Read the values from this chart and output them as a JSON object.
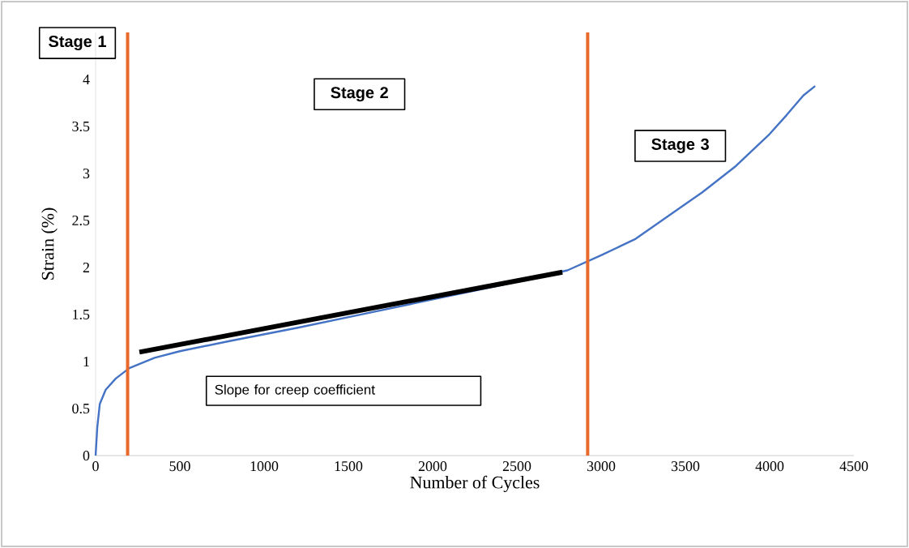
{
  "chart_data": {
    "type": "line",
    "xlabel": "Number of Cycles",
    "ylabel": "Strain (%)",
    "xlim": [
      0,
      4500
    ],
    "ylim": [
      0,
      4.5
    ],
    "xticks": [
      0,
      500,
      1000,
      1500,
      2000,
      2500,
      3000,
      3500,
      4000,
      4500
    ],
    "yticks": [
      0,
      0.5,
      1,
      1.5,
      2,
      2.5,
      3,
      3.5,
      4
    ],
    "series": [
      {
        "color": "#4472c4",
        "x": [
          0,
          10,
          25,
          60,
          120,
          200,
          350,
          500,
          800,
          1200,
          1600,
          2000,
          2400,
          2800,
          3000,
          3200,
          3400,
          3600,
          3800,
          4000,
          4100,
          4200,
          4270
        ],
        "values": [
          0,
          0.3,
          0.55,
          0.7,
          0.82,
          0.93,
          1.04,
          1.11,
          1.22,
          1.36,
          1.51,
          1.66,
          1.81,
          1.97,
          2.13,
          2.3,
          2.55,
          2.8,
          3.08,
          3.42,
          3.62,
          3.83,
          3.93
        ]
      },
      {
        "color": "#000000",
        "x": [
          260,
          2770
        ],
        "values": [
          1.1,
          1.95
        ]
      }
    ],
    "ref_lines": [
      {
        "axis": "x",
        "value": 190,
        "color": "#e9692c"
      },
      {
        "axis": "x",
        "value": 2920,
        "color": "#e9692c"
      }
    ],
    "annotations": [
      "Stage 1",
      "Stage 2",
      "Stage 3",
      "Slope for creep coefficient"
    ]
  }
}
